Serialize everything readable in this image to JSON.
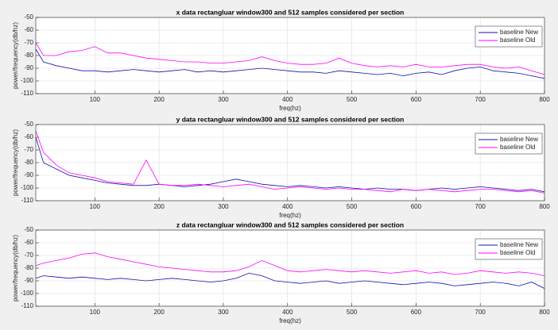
{
  "chart_data": [
    {
      "type": "line",
      "title": "x data rectangluar window300 and 512 samples considered per section",
      "xlabel": "freq(hz)",
      "ylabel": "power/frequency(db/hz)",
      "x": [
        8,
        20,
        40,
        60,
        80,
        100,
        120,
        140,
        160,
        180,
        200,
        220,
        240,
        260,
        280,
        300,
        320,
        340,
        360,
        380,
        400,
        420,
        440,
        460,
        480,
        500,
        520,
        540,
        560,
        580,
        600,
        620,
        640,
        660,
        680,
        700,
        720,
        740,
        760,
        780,
        800
      ],
      "xlim": [
        8,
        800
      ],
      "xticks": [
        100,
        200,
        300,
        400,
        500,
        600,
        700,
        800
      ],
      "ylim": [
        -110,
        -50
      ],
      "yticks": [
        -110,
        -100,
        -90,
        -80,
        -70,
        -60,
        -50
      ],
      "grid": true,
      "legend": "upper right",
      "series": [
        {
          "name": "baseline New",
          "color": "#1010b0",
          "values": [
            -75,
            -85,
            -88,
            -90,
            -92,
            -92,
            -93,
            -92,
            -91,
            -92,
            -93,
            -92,
            -91,
            -93,
            -92,
            -93,
            -92,
            -91,
            -90,
            -91,
            -92,
            -93,
            -93,
            -94,
            -92,
            -93,
            -94,
            -95,
            -94,
            -96,
            -94,
            -93,
            -95,
            -92,
            -90,
            -89,
            -92,
            -93,
            -94,
            -96,
            -98
          ]
        },
        {
          "name": "baseline Old",
          "color": "#ff00ff",
          "values": [
            -70,
            -80,
            -80,
            -77,
            -76,
            -73,
            -78,
            -78,
            -80,
            -82,
            -83,
            -84,
            -85,
            -85,
            -86,
            -86,
            -85,
            -84,
            -81,
            -84,
            -86,
            -87,
            -87,
            -86,
            -82,
            -86,
            -88,
            -89,
            -88,
            -89,
            -87,
            -89,
            -89,
            -88,
            -87,
            -87,
            -89,
            -90,
            -89,
            -92,
            -95
          ]
        }
      ]
    },
    {
      "type": "line",
      "title": "y data rectangluar window300 and 512 samples considered per section",
      "xlabel": "freq(hz)",
      "ylabel": "power/frequency(db/hz)",
      "x": [
        8,
        20,
        40,
        60,
        80,
        100,
        120,
        140,
        160,
        180,
        200,
        220,
        240,
        260,
        280,
        300,
        320,
        340,
        360,
        380,
        400,
        420,
        440,
        460,
        480,
        500,
        520,
        540,
        560,
        580,
        600,
        620,
        640,
        660,
        680,
        700,
        720,
        740,
        760,
        780,
        800
      ],
      "xlim": [
        8,
        800
      ],
      "xticks": [
        100,
        200,
        300,
        400,
        500,
        600,
        700,
        800
      ],
      "ylim": [
        -110,
        -50
      ],
      "yticks": [
        -110,
        -100,
        -90,
        -80,
        -70,
        -60,
        -50
      ],
      "grid": true,
      "legend": "upper right",
      "series": [
        {
          "name": "baseline New",
          "color": "#1010b0",
          "values": [
            -60,
            -80,
            -85,
            -90,
            -92,
            -94,
            -96,
            -97,
            -98,
            -98,
            -97,
            -98,
            -99,
            -98,
            -97,
            -95,
            -93,
            -95,
            -97,
            -98,
            -99,
            -98,
            -99,
            -100,
            -99,
            -100,
            -101,
            -100,
            -101,
            -101,
            -102,
            -101,
            -100,
            -101,
            -100,
            -99,
            -100,
            -101,
            -102,
            -101,
            -103
          ]
        },
        {
          "name": "baseline Old",
          "color": "#ff00ff",
          "values": [
            -55,
            -72,
            -82,
            -88,
            -90,
            -92,
            -95,
            -96,
            -97,
            -78,
            -97,
            -98,
            -98,
            -97,
            -98,
            -99,
            -98,
            -97,
            -99,
            -101,
            -100,
            -99,
            -100,
            -101,
            -100,
            -101,
            -101,
            -102,
            -103,
            -101,
            -102,
            -101,
            -102,
            -103,
            -102,
            -101,
            -101,
            -102,
            -103,
            -102,
            -104
          ]
        }
      ]
    },
    {
      "type": "line",
      "title": "z data rectangluar window300 and 512 samples considered per section",
      "xlabel": "freq(hz)",
      "ylabel": "power/frequency(db/hz)",
      "x": [
        8,
        20,
        40,
        60,
        80,
        100,
        120,
        140,
        160,
        180,
        200,
        220,
        240,
        260,
        280,
        300,
        320,
        340,
        360,
        380,
        400,
        420,
        440,
        460,
        480,
        500,
        520,
        540,
        560,
        580,
        600,
        620,
        640,
        660,
        680,
        700,
        720,
        740,
        760,
        780,
        800
      ],
      "xlim": [
        8,
        800
      ],
      "xticks": [
        100,
        200,
        300,
        400,
        500,
        600,
        700,
        800
      ],
      "ylim": [
        -110,
        -50
      ],
      "yticks": [
        -110,
        -100,
        -90,
        -80,
        -70,
        -60,
        -50
      ],
      "grid": true,
      "legend": "upper right",
      "series": [
        {
          "name": "baseline New",
          "color": "#1010b0",
          "values": [
            -88,
            -86,
            -87,
            -88,
            -87,
            -88,
            -89,
            -88,
            -89,
            -90,
            -89,
            -88,
            -89,
            -90,
            -91,
            -90,
            -88,
            -84,
            -86,
            -90,
            -91,
            -92,
            -91,
            -90,
            -92,
            -91,
            -90,
            -91,
            -92,
            -93,
            -92,
            -91,
            -92,
            -94,
            -93,
            -92,
            -91,
            -92,
            -94,
            -91,
            -96
          ]
        },
        {
          "name": "baseline Old",
          "color": "#ff00ff",
          "values": [
            -78,
            -76,
            -74,
            -72,
            -69,
            -68,
            -71,
            -73,
            -75,
            -77,
            -79,
            -80,
            -81,
            -82,
            -83,
            -83,
            -82,
            -79,
            -74,
            -78,
            -82,
            -83,
            -82,
            -81,
            -82,
            -83,
            -82,
            -83,
            -84,
            -83,
            -82,
            -84,
            -83,
            -85,
            -84,
            -82,
            -83,
            -84,
            -83,
            -84,
            -86
          ]
        }
      ]
    }
  ]
}
